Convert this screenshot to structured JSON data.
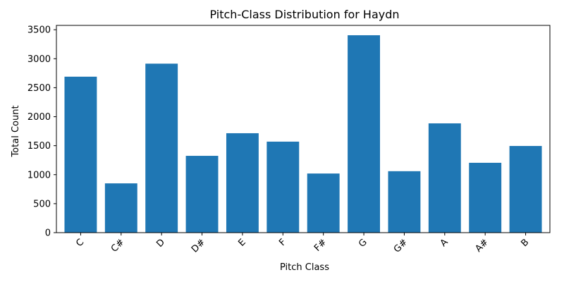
{
  "chart_data": {
    "type": "bar",
    "title": "Pitch-Class Distribution for Haydn",
    "xlabel": "Pitch Class",
    "ylabel": "Total Count",
    "categories": [
      "C",
      "C#",
      "D",
      "D#",
      "E",
      "F",
      "F#",
      "G",
      "G#",
      "A",
      "A#",
      "B"
    ],
    "values": [
      2690,
      850,
      2915,
      1325,
      1715,
      1570,
      1020,
      3405,
      1060,
      1885,
      1205,
      1495
    ],
    "ylim": [
      0,
      3575
    ],
    "yticks": [
      "0",
      "500",
      "1000",
      "1500",
      "2000",
      "2500",
      "3000",
      "3500"
    ],
    "grid": false,
    "x_tick_rotation_deg": 45,
    "bar_color": "#1f77b4"
  }
}
